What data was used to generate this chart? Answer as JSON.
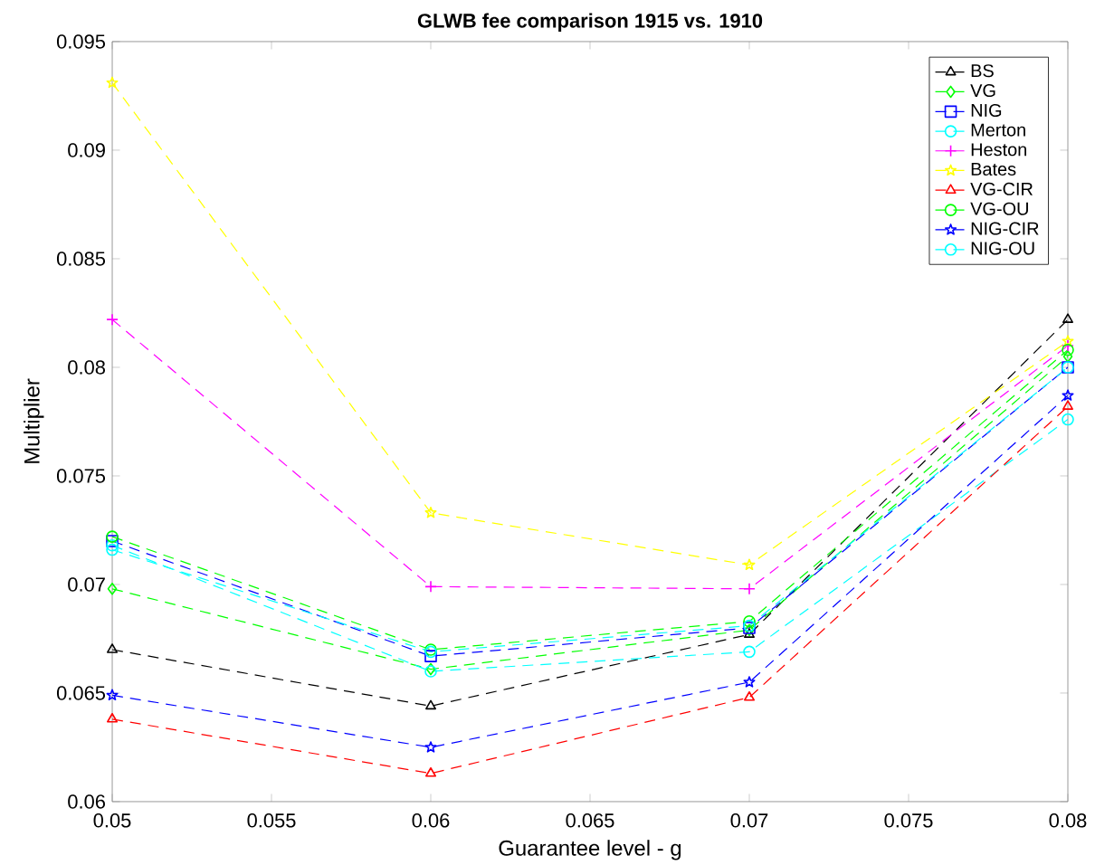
{
  "chart_data": {
    "type": "line",
    "title": "GLWB fee comparison 1915 vs. 1910",
    "xlabel": "Guarantee level - g",
    "ylabel": "Multiplier",
    "x": [
      0.05,
      0.06,
      0.07,
      0.08
    ],
    "xlim": [
      0.05,
      0.08
    ],
    "xticks": [
      0.05,
      0.055,
      0.06,
      0.065,
      0.07,
      0.075,
      0.08
    ],
    "ylim": [
      0.06,
      0.095
    ],
    "yticks": [
      0.06,
      0.065,
      0.07,
      0.075,
      0.08,
      0.085,
      0.09,
      0.095
    ],
    "legend": "top right",
    "line_style": "dashed",
    "grid": false,
    "series": [
      {
        "name": "BS",
        "color": "#000000",
        "marker": "triangle",
        "values": [
          0.067,
          0.0644,
          0.0677,
          0.0822
        ]
      },
      {
        "name": "VG",
        "color": "#00ff00",
        "marker": "diamond",
        "values": [
          0.0698,
          0.0661,
          0.0679,
          0.0805
        ]
      },
      {
        "name": "NIG",
        "color": "#0000ff",
        "marker": "square",
        "values": [
          0.072,
          0.0667,
          0.068,
          0.08
        ]
      },
      {
        "name": "Merton",
        "color": "#00ffff",
        "marker": "circle",
        "values": [
          0.0718,
          0.066,
          0.0669,
          0.0776
        ]
      },
      {
        "name": "Heston",
        "color": "#ff00ff",
        "marker": "cross",
        "values": [
          0.0822,
          0.0699,
          0.0698,
          0.081
        ]
      },
      {
        "name": "Bates",
        "color": "#ffff00",
        "marker": "star",
        "values": [
          0.0931,
          0.0733,
          0.0709,
          0.0812
        ]
      },
      {
        "name": "VG-CIR",
        "color": "#ff0000",
        "marker": "triangle",
        "values": [
          0.0638,
          0.0613,
          0.0648,
          0.0782
        ]
      },
      {
        "name": "VG-OU",
        "color": "#00ff00",
        "marker": "circle",
        "values": [
          0.0722,
          0.067,
          0.0683,
          0.0808
        ]
      },
      {
        "name": "NIG-CIR",
        "color": "#0000ff",
        "marker": "star",
        "values": [
          0.0649,
          0.0625,
          0.0655,
          0.0787
        ]
      },
      {
        "name": "NIG-OU",
        "color": "#00ffff",
        "marker": "circle",
        "values": [
          0.0716,
          0.0669,
          0.0681,
          0.08
        ]
      }
    ]
  }
}
